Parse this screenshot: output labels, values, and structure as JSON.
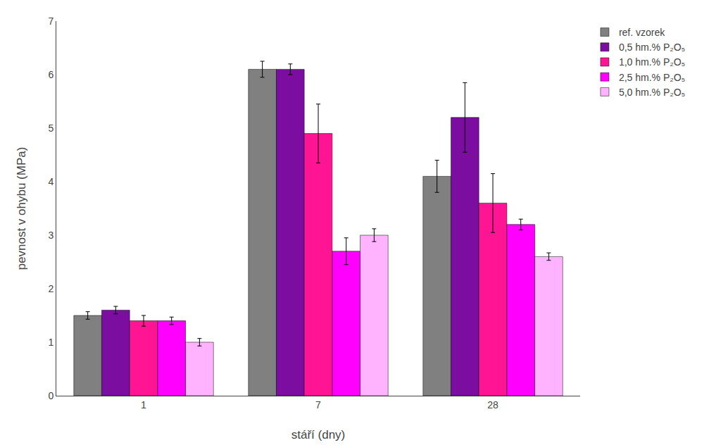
{
  "chart_data": {
    "type": "bar",
    "xlabel": "stáří (dny)",
    "ylabel": "pevnost v ohybu (MPa)",
    "categories": [
      "1",
      "7",
      "28"
    ],
    "series": [
      {
        "name": "ref. vzorek",
        "color": "#808080",
        "values": [
          1.5,
          6.1,
          4.1
        ],
        "errors": [
          0.07,
          0.15,
          0.3
        ]
      },
      {
        "name": "0,5 hm.% P₂O₅",
        "color": "#7B0DA0",
        "values": [
          1.6,
          6.1,
          5.2
        ],
        "errors": [
          0.07,
          0.1,
          0.65
        ]
      },
      {
        "name": "1,0 hm.% P₂O₅",
        "color": "#FF1493",
        "values": [
          1.4,
          4.9,
          3.6
        ],
        "errors": [
          0.1,
          0.55,
          0.55
        ]
      },
      {
        "name": "2,5 hm.% P₂O₅",
        "color": "#FF00FF",
        "values": [
          1.4,
          2.7,
          3.2
        ],
        "errors": [
          0.07,
          0.25,
          0.1
        ]
      },
      {
        "name": "5,0 hm.% P₂O₅",
        "color": "#FFB3FF",
        "values": [
          1.0,
          3.0,
          2.6
        ],
        "errors": [
          0.07,
          0.12,
          0.07
        ]
      }
    ],
    "ylim": [
      0,
      7
    ],
    "yticks": [
      0,
      1,
      2,
      3,
      4,
      5,
      6,
      7
    ],
    "grid": false,
    "legend": "upper right"
  }
}
